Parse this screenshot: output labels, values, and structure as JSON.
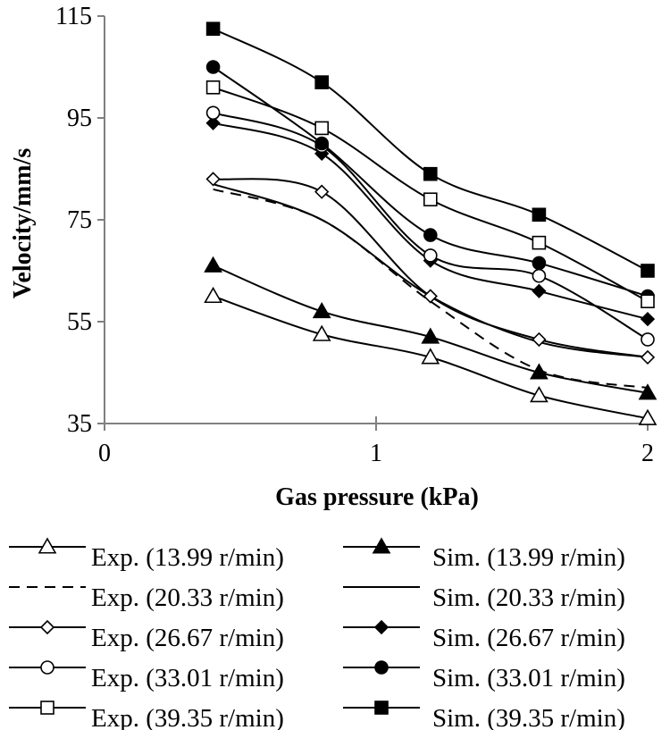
{
  "chart_data": {
    "type": "line",
    "xlabel": "Gas pressure (kPa)",
    "ylabel": "Velocity/mm/s",
    "xlim": [
      0,
      2
    ],
    "ylim": [
      35,
      115
    ],
    "x_ticks": [
      "0",
      "1",
      "2"
    ],
    "y_ticks": [
      "35",
      "55",
      "75",
      "95",
      "115"
    ],
    "grid": false,
    "legend_position": "bottom",
    "x": [
      0.4,
      0.8,
      1.2,
      1.6,
      2.0
    ],
    "series": [
      {
        "name": "Exp. (13.99 r/min)",
        "label": "Exp. (13.99 r/min)",
        "marker": "triangle-open",
        "dash": false,
        "values": [
          60,
          52.5,
          48,
          40.5,
          36
        ]
      },
      {
        "name": "Sim. (13.99 r/min)",
        "label": "Sim. (13.99 r/min)",
        "marker": "triangle-filled",
        "dash": false,
        "values": [
          66,
          57,
          52,
          45,
          41
        ]
      },
      {
        "name": "Exp. (20.33 r/min)",
        "label": "Exp. (20.33 r/min)",
        "marker": "none",
        "dash": true,
        "values": [
          81,
          75,
          59,
          45.5,
          42
        ]
      },
      {
        "name": "Sim. (20.33 r/min)",
        "label": "Sim. (20.33 r/min)",
        "marker": "none",
        "dash": false,
        "values": [
          82,
          75,
          60,
          51,
          48
        ]
      },
      {
        "name": "Exp. (26.67 r/min)",
        "label": "Exp. (26.67 r/min)",
        "marker": "diamond-open",
        "dash": false,
        "values": [
          83,
          80.5,
          60,
          51.5,
          48
        ]
      },
      {
        "name": "Sim. (26.67 r/min)",
        "label": "Sim. (26.67 r/min)",
        "marker": "diamond-filled",
        "dash": false,
        "values": [
          94,
          88,
          67,
          61,
          55.5
        ]
      },
      {
        "name": "Exp. (33.01 r/min)",
        "label": "Exp. (33.01 r/min)",
        "marker": "circle-open",
        "dash": false,
        "values": [
          96,
          89.5,
          68,
          64,
          51.5
        ]
      },
      {
        "name": "Sim. (33.01 r/min)",
        "label": "Sim. (33.01 r/min)",
        "marker": "circle-filled",
        "dash": false,
        "values": [
          105,
          90,
          72,
          66.5,
          60
        ]
      },
      {
        "name": "Exp. (39.35 r/min)",
        "label": "Exp. (39.35 r/min)",
        "marker": "square-open",
        "dash": false,
        "values": [
          101,
          93,
          79,
          70.5,
          59
        ]
      },
      {
        "name": "Sim. (39.35 r/min)",
        "label": "Sim. (39.35 r/min)",
        "marker": "square-filled",
        "dash": false,
        "values": [
          112.5,
          102,
          84,
          76,
          65
        ]
      }
    ],
    "legend_order": [
      0,
      1,
      2,
      3,
      4,
      5,
      6,
      7,
      8,
      9
    ]
  }
}
